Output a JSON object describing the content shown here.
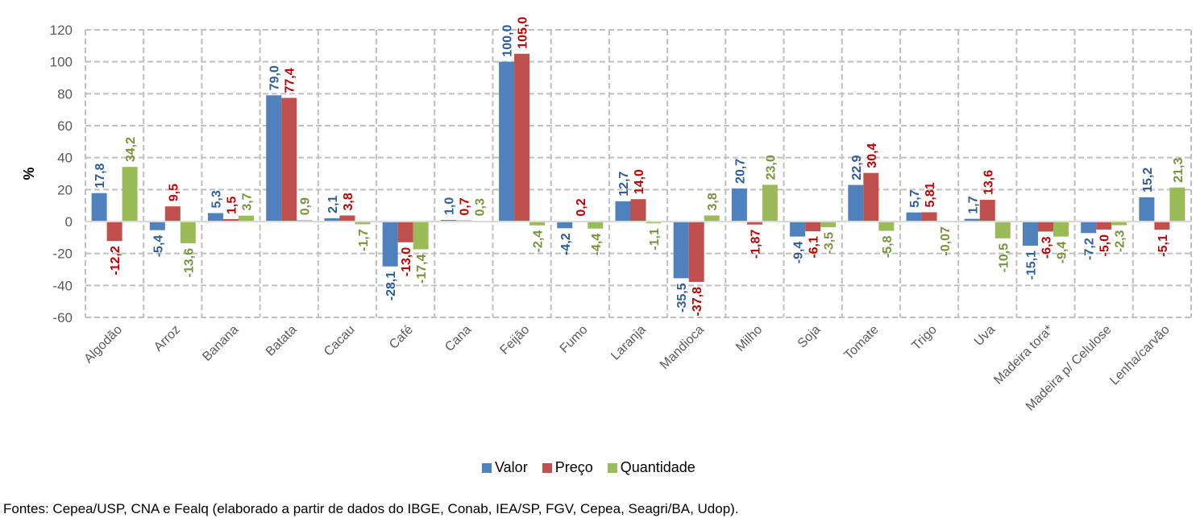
{
  "chart_data": {
    "type": "bar",
    "title": "",
    "xlabel": "",
    "ylabel": "%",
    "ylim": [
      -60,
      120
    ],
    "yticks": [
      120,
      100,
      80,
      60,
      40,
      20,
      0,
      -20,
      -40,
      -60
    ],
    "grid": true,
    "legend_position": "bottom",
    "categories": [
      "Algodão",
      "Arroz",
      "Banana",
      "Batata",
      "Cacau",
      "Café",
      "Cana",
      "Feijão",
      "Fumo",
      "Laranja",
      "Mandioca",
      "Milho",
      "Soja",
      "Tomate",
      "Trigo",
      "Uva",
      "Madeira tora*",
      "Madeira p/ Celulose",
      "Lenha/carvão"
    ],
    "series": [
      {
        "name": "Valor",
        "color": "#4f81bd",
        "label_color": "#2e5d9a",
        "values": [
          17.8,
          -5.4,
          5.3,
          79.0,
          2.1,
          -28.1,
          1.0,
          100.0,
          -4.2,
          12.7,
          -35.5,
          20.7,
          -9.4,
          22.9,
          5.7,
          1.7,
          -15.1,
          -7.2,
          15.2
        ],
        "labels": [
          "17,8",
          "-5,4",
          "5,3",
          "79,0",
          "2,1",
          "-28,1",
          "1,0",
          "100,0",
          "-4,2",
          "12,7",
          "-35,5",
          "20,7",
          "-9,4",
          "22,9",
          "5,7",
          "1,7",
          "-15,1",
          "-7,2",
          "15,2"
        ]
      },
      {
        "name": "Preço",
        "color": "#c0504d",
        "label_color": "#c00000",
        "values": [
          -12.2,
          9.5,
          1.5,
          77.4,
          3.8,
          -13.0,
          0.7,
          105.0,
          0.2,
          14.0,
          -37.8,
          -1.87,
          -6.1,
          30.4,
          5.81,
          13.6,
          -6.3,
          -5.0,
          -5.1
        ],
        "labels": [
          "-12,2",
          "9,5",
          "1,5",
          "77,4",
          "3,8",
          "-13,0",
          "0,7",
          "105,0",
          "0,2",
          "14,0",
          "-37,8",
          "-1,87",
          "-6,1",
          "30,4",
          "5,81",
          "13,6",
          "-6,3",
          "-5,0",
          "-5,1"
        ]
      },
      {
        "name": "Quantidade",
        "color": "#9bbb59",
        "label_color": "#77933c",
        "values": [
          34.2,
          -13.6,
          3.7,
          0.9,
          -1.7,
          -17.4,
          0.3,
          -2.4,
          -4.4,
          -1.1,
          3.8,
          23.0,
          -3.5,
          -5.8,
          -0.07,
          -10.5,
          -9.4,
          -2.3,
          21.3
        ],
        "labels": [
          "34,2",
          "-13,6",
          "3,7",
          "0,9",
          "-1,7",
          "-17,4",
          "0,3",
          "-2,4",
          "-4,4",
          "-1,1",
          "3,8",
          "23,0",
          "-3,5",
          "-5,8",
          "-0,07",
          "-10,5",
          "-9,4",
          "-2,3",
          "21,3"
        ]
      }
    ]
  },
  "footer": {
    "source": "Fontes: Cepea/USP, CNA e Fealq (elaborado a partir de dados do IBGE, Conab, IEA/SP, FGV, Cepea, Seagri/BA, Udop)."
  }
}
